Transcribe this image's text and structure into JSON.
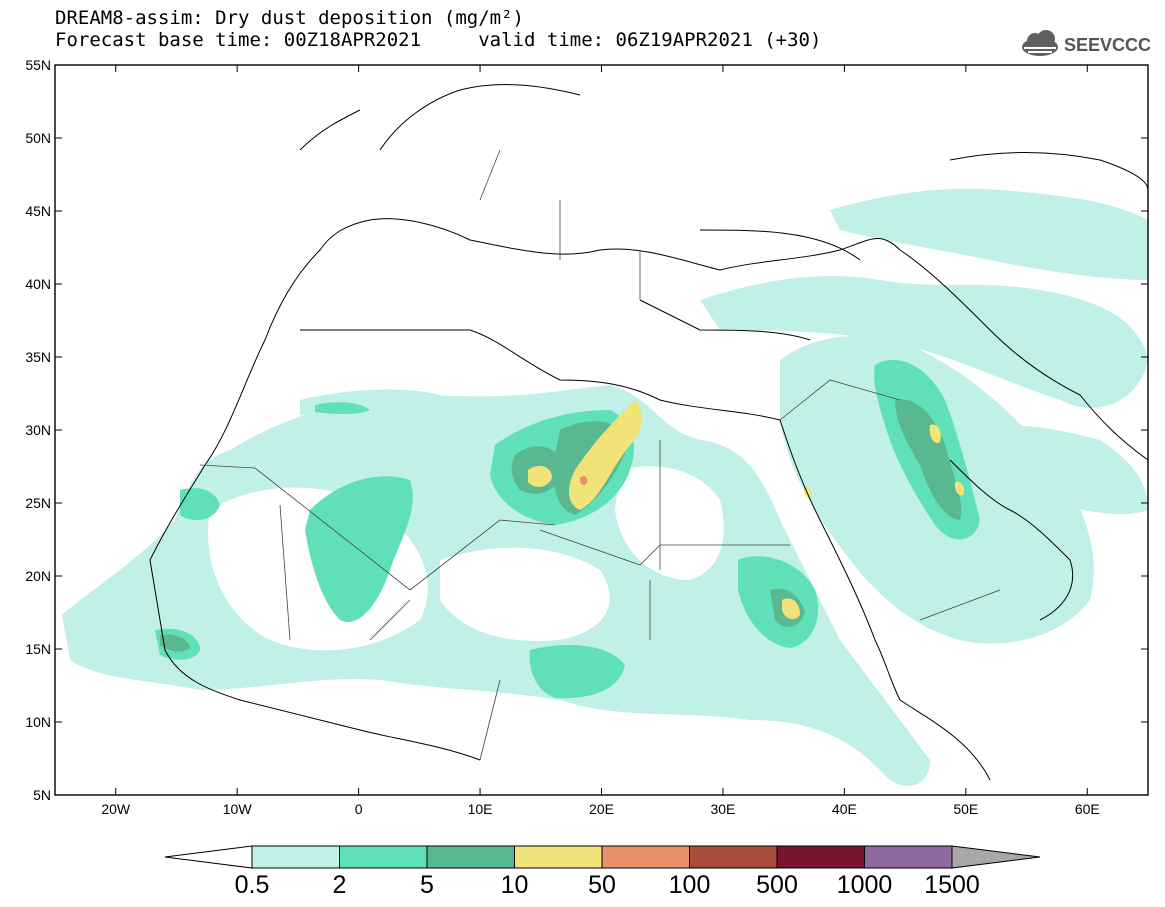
{
  "header": {
    "title_line1": "DREAM8-assim: Dry dust deposition (mg/m²)",
    "title_line2": "Forecast base time: 00Z18APR2021     valid time: 06Z19APR2021 (+30)",
    "logo_text": "SEEVCCC"
  },
  "map": {
    "lon_range": [
      -25,
      65
    ],
    "lat_range": [
      5,
      55
    ],
    "lat_labels": [
      {
        "lat": 55,
        "label": "55N"
      },
      {
        "lat": 50,
        "label": "50N"
      },
      {
        "lat": 45,
        "label": "45N"
      },
      {
        "lat": 40,
        "label": "40N"
      },
      {
        "lat": 35,
        "label": "35N"
      },
      {
        "lat": 30,
        "label": "30N"
      },
      {
        "lat": 25,
        "label": "25N"
      },
      {
        "lat": 20,
        "label": "20N"
      },
      {
        "lat": 15,
        "label": "15N"
      },
      {
        "lat": 10,
        "label": "10N"
      },
      {
        "lat": 5,
        "label": "5N"
      }
    ],
    "lon_labels": [
      {
        "lon": -20,
        "label": "20W"
      },
      {
        "lon": -10,
        "label": "10W"
      },
      {
        "lon": 0,
        "label": "0"
      },
      {
        "lon": 10,
        "label": "10E"
      },
      {
        "lon": 20,
        "label": "20E"
      },
      {
        "lon": 30,
        "label": "30E"
      },
      {
        "lon": 40,
        "label": "40E"
      },
      {
        "lon": 50,
        "label": "50E"
      },
      {
        "lon": 60,
        "label": "60E"
      }
    ]
  },
  "legend": {
    "labels": [
      "0.5",
      "2",
      "5",
      "10",
      "50",
      "100",
      "500",
      "1000",
      "1500"
    ],
    "colors": [
      "#c0f0e8",
      "#5fe0b8",
      "#5ab890",
      "#f0e478",
      "#e8906a",
      "#a84c3c",
      "#7a1530",
      "#8e6aa0"
    ],
    "under_color": "#ffffff",
    "over_color": "#a8a8a8"
  }
}
